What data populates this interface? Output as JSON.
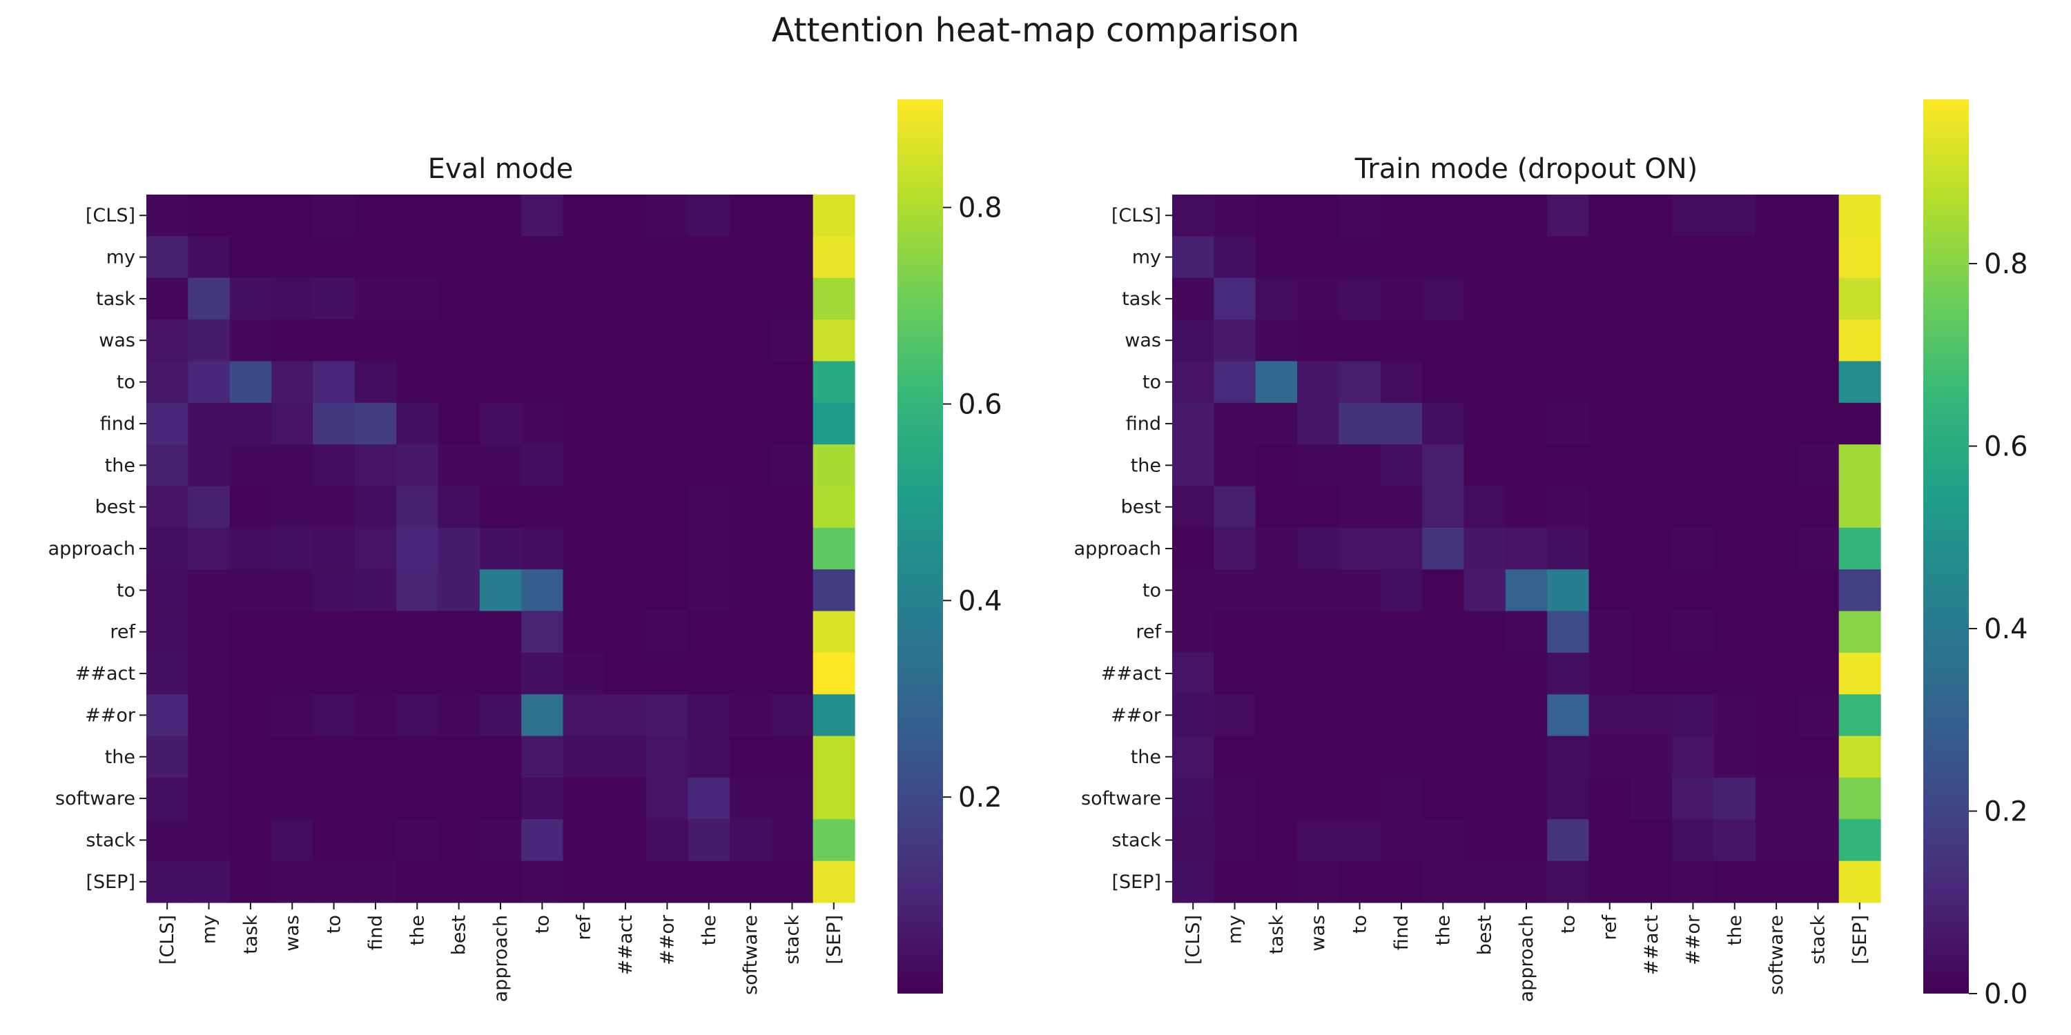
{
  "figure": {
    "title": "Attention heat-map comparison"
  },
  "colormap": {
    "name": "viridis",
    "stops": [
      "#440154",
      "#482878",
      "#3e4a89",
      "#31688e",
      "#26828e",
      "#1f9e89",
      "#35b779",
      "#6ece58",
      "#b5de2b",
      "#fde725"
    ]
  },
  "chart_data": [
    {
      "type": "heatmap",
      "title": "Eval mode",
      "tokens": [
        "[CLS]",
        "my",
        "task",
        "was",
        "to",
        "find",
        "the",
        "best",
        "approach",
        "to",
        "ref",
        "##act",
        "##or",
        "the",
        "software",
        "stack",
        "[SEP]"
      ],
      "vmin": 0.0,
      "vmax": 0.91,
      "colorbar_ticks": [
        "0.2",
        "0.4",
        "0.6",
        "0.8"
      ],
      "matrix": [
        [
          0.02,
          0.01,
          0.01,
          0.01,
          0.02,
          0.01,
          0.01,
          0.01,
          0.01,
          0.05,
          0.01,
          0.01,
          0.02,
          0.03,
          0.01,
          0.01,
          0.86
        ],
        [
          0.08,
          0.03,
          0.01,
          0.01,
          0.01,
          0.01,
          0.01,
          0.01,
          0.01,
          0.01,
          0.01,
          0.01,
          0.01,
          0.01,
          0.01,
          0.01,
          0.88
        ],
        [
          0.02,
          0.15,
          0.04,
          0.03,
          0.04,
          0.02,
          0.02,
          0.01,
          0.01,
          0.01,
          0.01,
          0.01,
          0.01,
          0.01,
          0.01,
          0.01,
          0.78
        ],
        [
          0.05,
          0.07,
          0.02,
          0.01,
          0.01,
          0.01,
          0.01,
          0.01,
          0.01,
          0.01,
          0.01,
          0.01,
          0.01,
          0.01,
          0.01,
          0.02,
          0.84
        ],
        [
          0.06,
          0.1,
          0.2,
          0.06,
          0.1,
          0.03,
          0.01,
          0.01,
          0.01,
          0.01,
          0.01,
          0.01,
          0.01,
          0.01,
          0.01,
          0.01,
          0.55
        ],
        [
          0.1,
          0.03,
          0.03,
          0.05,
          0.15,
          0.16,
          0.04,
          0.01,
          0.03,
          0.02,
          0.01,
          0.01,
          0.01,
          0.01,
          0.01,
          0.01,
          0.5
        ],
        [
          0.08,
          0.03,
          0.02,
          0.02,
          0.03,
          0.05,
          0.06,
          0.02,
          0.02,
          0.03,
          0.01,
          0.01,
          0.01,
          0.01,
          0.01,
          0.02,
          0.79
        ],
        [
          0.05,
          0.08,
          0.01,
          0.02,
          0.02,
          0.03,
          0.08,
          0.03,
          0.01,
          0.01,
          0.01,
          0.01,
          0.01,
          0.02,
          0.01,
          0.01,
          0.8
        ],
        [
          0.04,
          0.05,
          0.03,
          0.04,
          0.03,
          0.05,
          0.1,
          0.07,
          0.04,
          0.03,
          0.01,
          0.01,
          0.01,
          0.02,
          0.01,
          0.01,
          0.68
        ],
        [
          0.03,
          0.02,
          0.02,
          0.02,
          0.03,
          0.04,
          0.09,
          0.07,
          0.38,
          0.27,
          0.01,
          0.01,
          0.01,
          0.02,
          0.01,
          0.01,
          0.16
        ],
        [
          0.03,
          0.02,
          0.01,
          0.01,
          0.01,
          0.01,
          0.01,
          0.01,
          0.01,
          0.09,
          0.01,
          0.01,
          0.02,
          0.01,
          0.01,
          0.01,
          0.86
        ],
        [
          0.04,
          0.02,
          0.01,
          0.01,
          0.01,
          0.01,
          0.01,
          0.01,
          0.01,
          0.04,
          0.02,
          0.01,
          0.01,
          0.01,
          0.01,
          0.01,
          0.91
        ],
        [
          0.1,
          0.02,
          0.01,
          0.02,
          0.03,
          0.02,
          0.03,
          0.02,
          0.04,
          0.34,
          0.05,
          0.05,
          0.06,
          0.03,
          0.02,
          0.03,
          0.45
        ],
        [
          0.07,
          0.02,
          0.01,
          0.01,
          0.01,
          0.01,
          0.01,
          0.01,
          0.01,
          0.06,
          0.03,
          0.03,
          0.05,
          0.03,
          0.01,
          0.01,
          0.82
        ],
        [
          0.04,
          0.02,
          0.01,
          0.01,
          0.01,
          0.01,
          0.01,
          0.01,
          0.01,
          0.03,
          0.01,
          0.01,
          0.05,
          0.1,
          0.02,
          0.02,
          0.82
        ],
        [
          0.02,
          0.02,
          0.01,
          0.03,
          0.01,
          0.01,
          0.02,
          0.01,
          0.02,
          0.1,
          0.01,
          0.01,
          0.03,
          0.07,
          0.03,
          0.02,
          0.7
        ],
        [
          0.04,
          0.04,
          0.01,
          0.02,
          0.02,
          0.02,
          0.01,
          0.01,
          0.01,
          0.02,
          0.01,
          0.01,
          0.01,
          0.01,
          0.01,
          0.01,
          0.88
        ]
      ]
    },
    {
      "type": "heatmap",
      "title": "Train mode (dropout ON)",
      "tokens": [
        "[CLS]",
        "my",
        "task",
        "was",
        "to",
        "find",
        "the",
        "best",
        "approach",
        "to",
        "ref",
        "##act",
        "##or",
        "the",
        "software",
        "stack",
        "[SEP]"
      ],
      "vmin": 0.0,
      "vmax": 0.98,
      "colorbar_ticks": [
        "0.0",
        "0.2",
        "0.4",
        "0.6",
        "0.8"
      ],
      "matrix": [
        [
          0.03,
          0.02,
          0.01,
          0.01,
          0.02,
          0.01,
          0.01,
          0.01,
          0.01,
          0.05,
          0.01,
          0.01,
          0.03,
          0.03,
          0.01,
          0.01,
          0.95
        ],
        [
          0.09,
          0.04,
          0.01,
          0.01,
          0.01,
          0.01,
          0.01,
          0.01,
          0.01,
          0.01,
          0.01,
          0.01,
          0.01,
          0.01,
          0.01,
          0.01,
          0.96
        ],
        [
          0.02,
          0.12,
          0.03,
          0.02,
          0.03,
          0.02,
          0.03,
          0.01,
          0.01,
          0.01,
          0.01,
          0.01,
          0.01,
          0.01,
          0.01,
          0.01,
          0.9
        ],
        [
          0.04,
          0.07,
          0.02,
          0.01,
          0.01,
          0.01,
          0.01,
          0.01,
          0.01,
          0.01,
          0.01,
          0.01,
          0.01,
          0.01,
          0.01,
          0.01,
          0.96
        ],
        [
          0.05,
          0.12,
          0.33,
          0.06,
          0.08,
          0.03,
          0.01,
          0.01,
          0.01,
          0.01,
          0.01,
          0.01,
          0.01,
          0.01,
          0.01,
          0.01,
          0.48
        ],
        [
          0.07,
          0.02,
          0.02,
          0.06,
          0.14,
          0.14,
          0.04,
          0.01,
          0.01,
          0.02,
          0.01,
          0.01,
          0.01,
          0.01,
          0.01,
          0.01,
          0.01
        ],
        [
          0.07,
          0.02,
          0.01,
          0.02,
          0.02,
          0.04,
          0.08,
          0.01,
          0.01,
          0.01,
          0.01,
          0.01,
          0.01,
          0.01,
          0.01,
          0.02,
          0.84
        ],
        [
          0.03,
          0.08,
          0.01,
          0.01,
          0.02,
          0.02,
          0.08,
          0.03,
          0.01,
          0.02,
          0.01,
          0.01,
          0.01,
          0.01,
          0.01,
          0.01,
          0.84
        ],
        [
          0.01,
          0.05,
          0.02,
          0.04,
          0.05,
          0.05,
          0.15,
          0.06,
          0.05,
          0.04,
          0.01,
          0.01,
          0.02,
          0.01,
          0.01,
          0.02,
          0.64
        ],
        [
          0.02,
          0.02,
          0.02,
          0.02,
          0.02,
          0.04,
          0.01,
          0.07,
          0.31,
          0.42,
          0.01,
          0.01,
          0.01,
          0.01,
          0.01,
          0.01,
          0.18
        ],
        [
          0.02,
          0.01,
          0.01,
          0.01,
          0.01,
          0.01,
          0.01,
          0.01,
          0.02,
          0.22,
          0.02,
          0.01,
          0.02,
          0.01,
          0.01,
          0.01,
          0.8
        ],
        [
          0.05,
          0.01,
          0.01,
          0.01,
          0.01,
          0.01,
          0.01,
          0.01,
          0.01,
          0.04,
          0.02,
          0.01,
          0.01,
          0.01,
          0.01,
          0.01,
          0.96
        ],
        [
          0.04,
          0.03,
          0.01,
          0.01,
          0.01,
          0.01,
          0.01,
          0.01,
          0.01,
          0.3,
          0.03,
          0.03,
          0.04,
          0.02,
          0.01,
          0.02,
          0.65
        ],
        [
          0.05,
          0.01,
          0.01,
          0.01,
          0.01,
          0.01,
          0.01,
          0.01,
          0.01,
          0.03,
          0.02,
          0.02,
          0.05,
          0.02,
          0.01,
          0.01,
          0.9
        ],
        [
          0.04,
          0.02,
          0.01,
          0.01,
          0.01,
          0.02,
          0.01,
          0.01,
          0.01,
          0.03,
          0.01,
          0.02,
          0.07,
          0.09,
          0.02,
          0.02,
          0.78
        ],
        [
          0.03,
          0.02,
          0.01,
          0.03,
          0.03,
          0.02,
          0.02,
          0.01,
          0.01,
          0.15,
          0.01,
          0.01,
          0.04,
          0.06,
          0.02,
          0.02,
          0.64
        ],
        [
          0.04,
          0.01,
          0.01,
          0.02,
          0.01,
          0.01,
          0.02,
          0.02,
          0.02,
          0.03,
          0.01,
          0.01,
          0.02,
          0.01,
          0.01,
          0.01,
          0.95
        ]
      ]
    }
  ]
}
